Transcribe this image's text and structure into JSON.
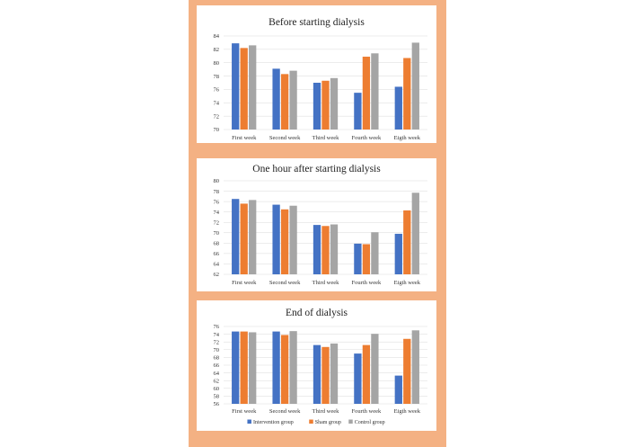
{
  "colors": {
    "frame": "#f4b183",
    "intervention": "#4472c4",
    "sham": "#ed7d31",
    "control": "#a5a5a5"
  },
  "chart_data": [
    {
      "type": "bar",
      "title": "Before starting dialysis",
      "categories": [
        "First week",
        "Second week",
        "Third week",
        "Fourth week",
        "Eigth week"
      ],
      "ylim": [
        70,
        84
      ],
      "yticks": [
        "70",
        "72",
        "74",
        "76",
        "78",
        "80",
        "82",
        "84"
      ],
      "grid": true,
      "series": [
        {
          "name": "Intervention group",
          "values": [
            82.9,
            79.1,
            77.0,
            75.5,
            76.4
          ]
        },
        {
          "name": "Sham group",
          "values": [
            82.2,
            78.3,
            77.3,
            80.9,
            80.7
          ]
        },
        {
          "name": "Control group",
          "values": [
            82.6,
            78.8,
            77.7,
            81.4,
            83.0
          ]
        }
      ]
    },
    {
      "type": "bar",
      "title": "One hour after starting dialysis",
      "categories": [
        "First week",
        "Second week",
        "Third week",
        "Fourth week",
        "Eigth week"
      ],
      "ylim": [
        62,
        80
      ],
      "yticks": [
        "62",
        "64",
        "66",
        "68",
        "70",
        "72",
        "74",
        "76",
        "78",
        "80"
      ],
      "grid": true,
      "series": [
        {
          "name": "Intervention group",
          "values": [
            76.5,
            75.4,
            71.5,
            67.9,
            69.8
          ]
        },
        {
          "name": "Sham group",
          "values": [
            75.6,
            74.5,
            71.3,
            67.8,
            74.3
          ]
        },
        {
          "name": "Control group",
          "values": [
            76.3,
            75.2,
            71.6,
            70.1,
            77.7
          ]
        }
      ]
    },
    {
      "type": "bar",
      "title": "End of dialysis",
      "categories": [
        "First week",
        "Second week",
        "Third week",
        "Fourth week",
        "Eigth week"
      ],
      "ylim": [
        56,
        76
      ],
      "yticks": [
        "56",
        "58",
        "60",
        "62",
        "64",
        "66",
        "68",
        "70",
        "72",
        "74",
        "76"
      ],
      "grid": true,
      "legend": "bottom",
      "series": [
        {
          "name": "Intervention group",
          "values": [
            74.7,
            74.7,
            71.2,
            69.0,
            63.3
          ]
        },
        {
          "name": "Sham group",
          "values": [
            74.7,
            73.8,
            70.7,
            71.2,
            72.8
          ]
        },
        {
          "name": "Control group",
          "values": [
            74.5,
            74.8,
            71.6,
            74.1,
            75.0
          ]
        }
      ]
    }
  ]
}
